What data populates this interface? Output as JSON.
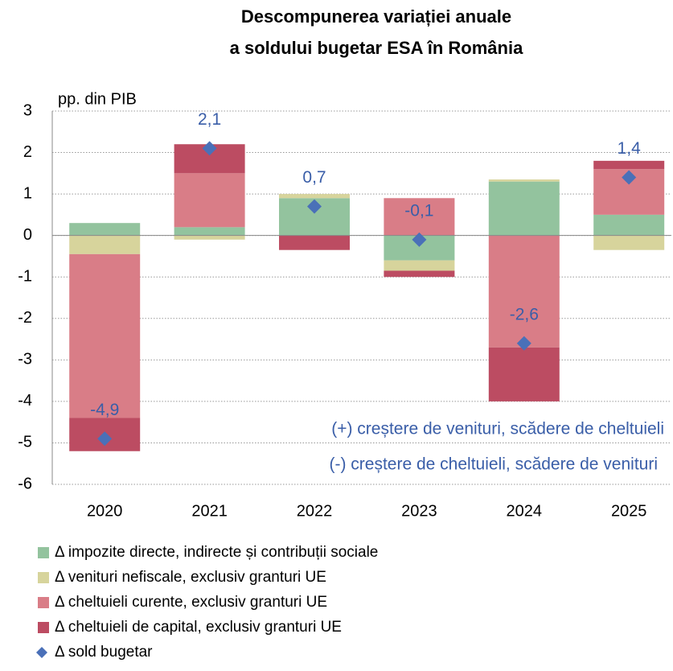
{
  "chart_data": {
    "type": "stacked_bar",
    "title": [
      "Descompunerea variației anuale",
      "a soldului bugetar ESA în România"
    ],
    "y_label": "pp. din PIB",
    "categories": [
      "2020",
      "2021",
      "2022",
      "2023",
      "2024",
      "2025"
    ],
    "series": [
      {
        "name": "Δ impozite directe, indirecte și contribuții sociale",
        "color": "#93c39e",
        "values": [
          0.3,
          0.2,
          0.9,
          -0.6,
          1.3,
          0.5
        ]
      },
      {
        "name": "Δ venituri nefiscale, exclusiv granturi UE",
        "color": "#d7d49c",
        "values": [
          -0.45,
          -0.1,
          0.1,
          -0.25,
          0.05,
          -0.35
        ]
      },
      {
        "name": "Δ cheltuieli curente, exclusiv granturi UE",
        "color": "#d97d87",
        "values": [
          -3.95,
          1.3,
          0,
          0.9,
          -2.7,
          1.1
        ]
      },
      {
        "name": "Δ cheltuieli de capital, exclusiv granturi UE",
        "color": "#bc4c62",
        "values": [
          -0.8,
          0.7,
          -0.35,
          -0.15,
          -1.3,
          0.2
        ]
      },
      {
        "name": "Δ sold bugetar",
        "color": "#4a70b8",
        "kind": "marker",
        "values": [
          -4.9,
          2.1,
          0.7,
          -0.1,
          -2.6,
          1.4
        ],
        "value_labels": [
          "-4,9",
          "2,1",
          "0,7",
          "-0,1",
          "-2,6",
          "1,4"
        ]
      }
    ],
    "annotations": [
      "(+) creștere de venituri, scădere de cheltuieli",
      "(-) creștere de cheltuieli, scădere de venituri"
    ],
    "ylim": [
      -6,
      3
    ],
    "yticks": [
      3,
      2,
      1,
      0,
      -1,
      -2,
      -3,
      -4,
      -5,
      -6
    ],
    "grid": true
  }
}
